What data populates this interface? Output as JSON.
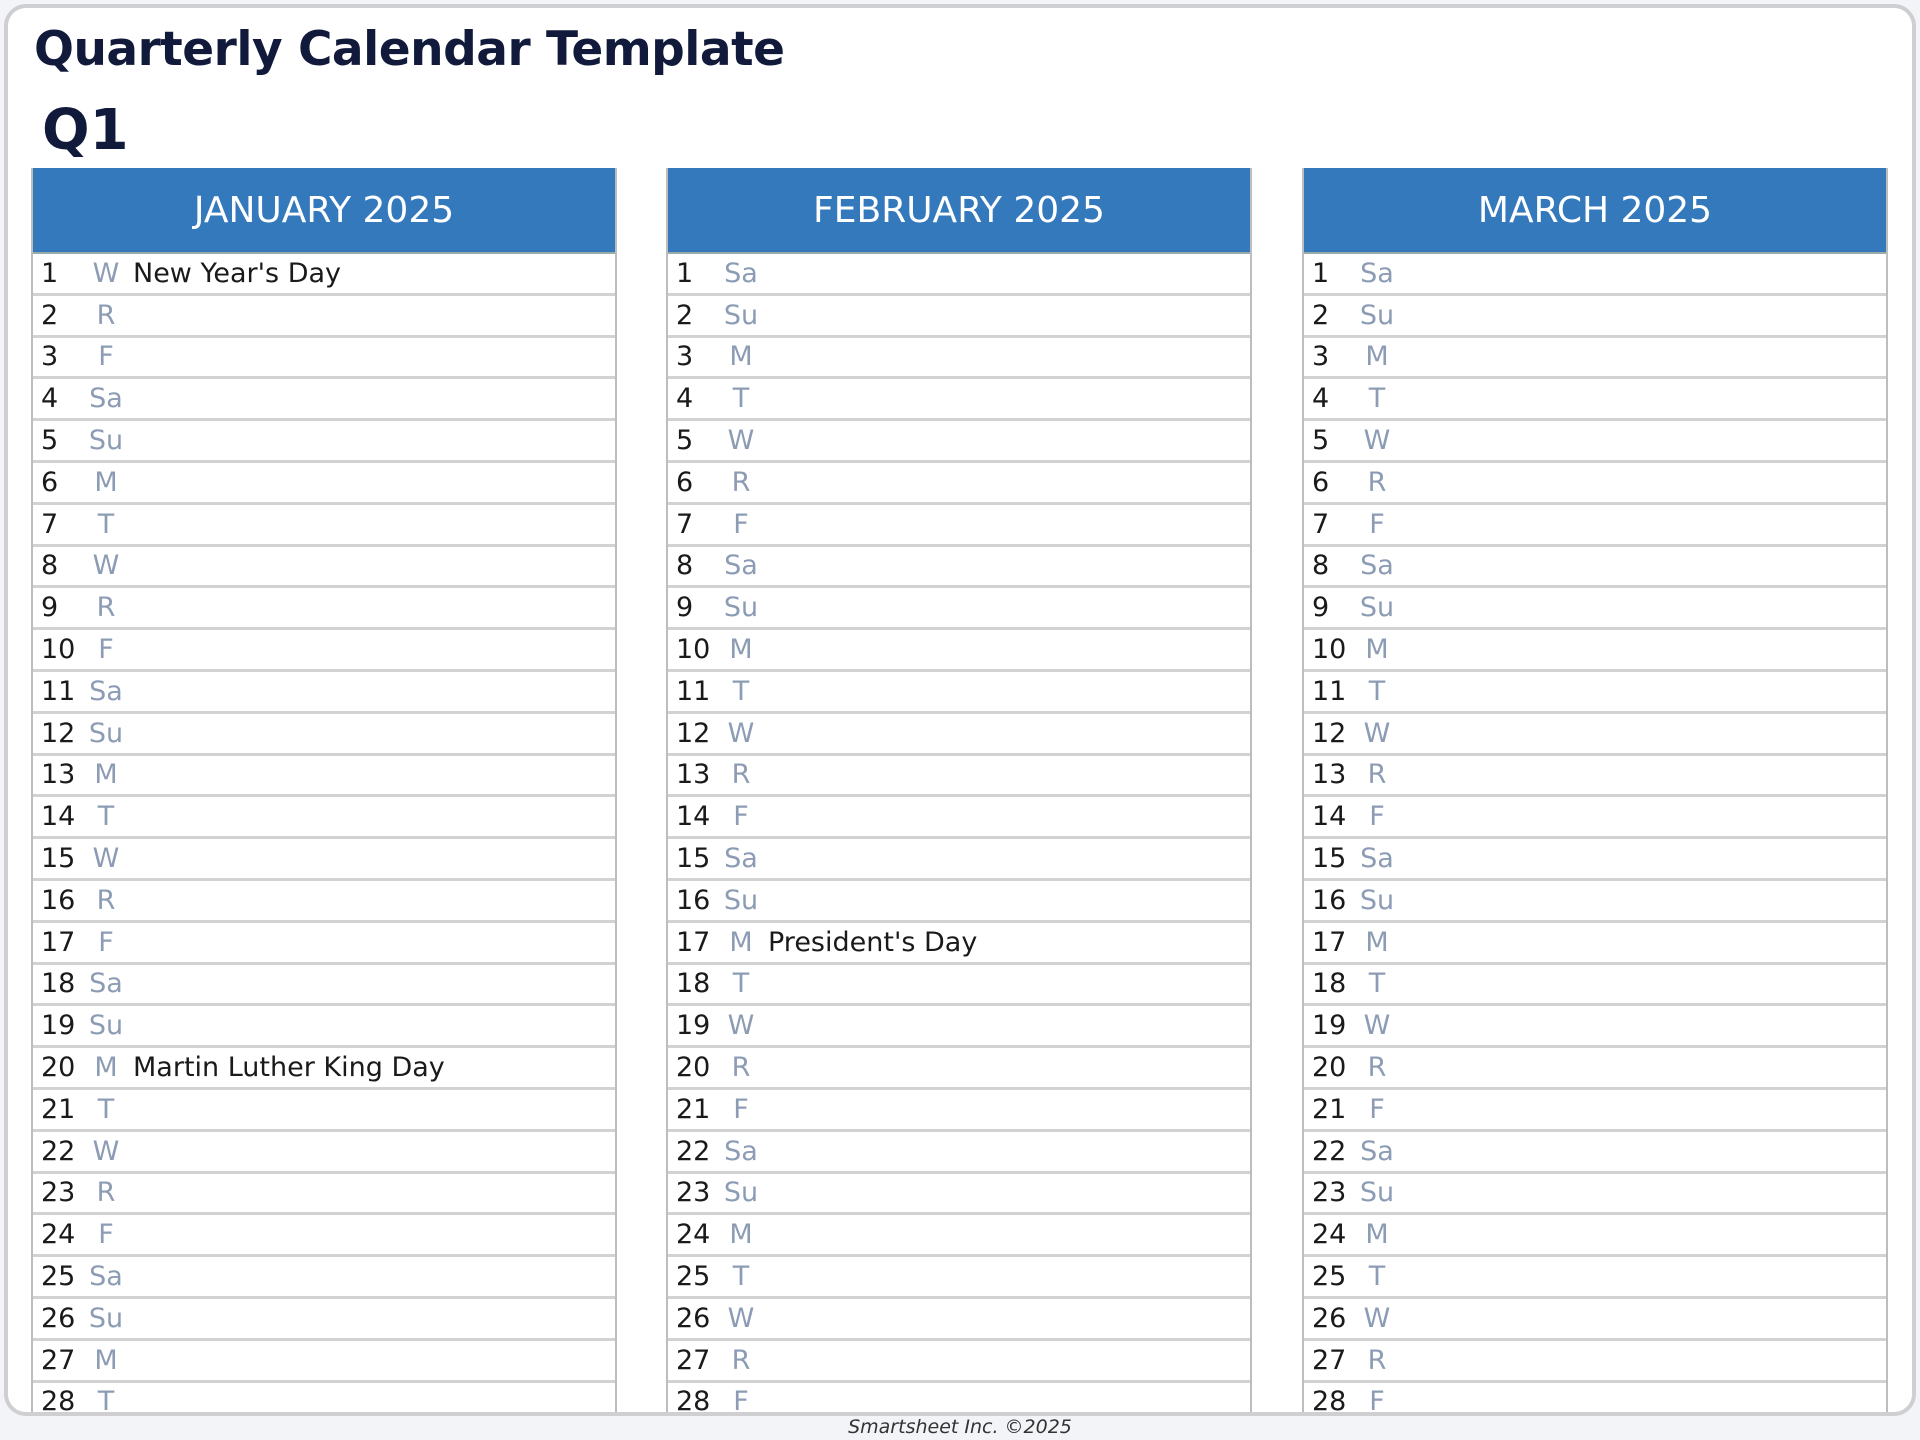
{
  "title": "Quarterly Calendar Template",
  "quarter": "Q1",
  "accent": "#3579bd",
  "footer": "Smartsheet Inc. ©2025",
  "months": [
    {
      "label": "JANUARY 2025",
      "days": [
        {
          "d": "1",
          "w": "W",
          "note": "New Year's Day"
        },
        {
          "d": "2",
          "w": "R"
        },
        {
          "d": "3",
          "w": "F"
        },
        {
          "d": "4",
          "w": "Sa"
        },
        {
          "d": "5",
          "w": "Su"
        },
        {
          "d": "6",
          "w": "M"
        },
        {
          "d": "7",
          "w": "T"
        },
        {
          "d": "8",
          "w": "W"
        },
        {
          "d": "9",
          "w": "R"
        },
        {
          "d": "10",
          "w": "F"
        },
        {
          "d": "11",
          "w": "Sa"
        },
        {
          "d": "12",
          "w": "Su"
        },
        {
          "d": "13",
          "w": "M"
        },
        {
          "d": "14",
          "w": "T"
        },
        {
          "d": "15",
          "w": "W"
        },
        {
          "d": "16",
          "w": "R"
        },
        {
          "d": "17",
          "w": "F"
        },
        {
          "d": "18",
          "w": "Sa"
        },
        {
          "d": "19",
          "w": "Su"
        },
        {
          "d": "20",
          "w": "M",
          "note": "Martin Luther King Day"
        },
        {
          "d": "21",
          "w": "T"
        },
        {
          "d": "22",
          "w": "W"
        },
        {
          "d": "23",
          "w": "R"
        },
        {
          "d": "24",
          "w": "F"
        },
        {
          "d": "25",
          "w": "Sa"
        },
        {
          "d": "26",
          "w": "Su"
        },
        {
          "d": "27",
          "w": "M"
        },
        {
          "d": "28",
          "w": "T"
        }
      ]
    },
    {
      "label": "FEBRUARY 2025",
      "days": [
        {
          "d": "1",
          "w": "Sa"
        },
        {
          "d": "2",
          "w": "Su"
        },
        {
          "d": "3",
          "w": "M"
        },
        {
          "d": "4",
          "w": "T"
        },
        {
          "d": "5",
          "w": "W"
        },
        {
          "d": "6",
          "w": "R"
        },
        {
          "d": "7",
          "w": "F"
        },
        {
          "d": "8",
          "w": "Sa"
        },
        {
          "d": "9",
          "w": "Su"
        },
        {
          "d": "10",
          "w": "M"
        },
        {
          "d": "11",
          "w": "T"
        },
        {
          "d": "12",
          "w": "W"
        },
        {
          "d": "13",
          "w": "R"
        },
        {
          "d": "14",
          "w": "F"
        },
        {
          "d": "15",
          "w": "Sa"
        },
        {
          "d": "16",
          "w": "Su"
        },
        {
          "d": "17",
          "w": "M",
          "note": "President's Day"
        },
        {
          "d": "18",
          "w": "T"
        },
        {
          "d": "19",
          "w": "W"
        },
        {
          "d": "20",
          "w": "R"
        },
        {
          "d": "21",
          "w": "F"
        },
        {
          "d": "22",
          "w": "Sa"
        },
        {
          "d": "23",
          "w": "Su"
        },
        {
          "d": "24",
          "w": "M"
        },
        {
          "d": "25",
          "w": "T"
        },
        {
          "d": "26",
          "w": "W"
        },
        {
          "d": "27",
          "w": "R"
        },
        {
          "d": "28",
          "w": "F"
        }
      ]
    },
    {
      "label": "MARCH 2025",
      "days": [
        {
          "d": "1",
          "w": "Sa"
        },
        {
          "d": "2",
          "w": "Su"
        },
        {
          "d": "3",
          "w": "M"
        },
        {
          "d": "4",
          "w": "T"
        },
        {
          "d": "5",
          "w": "W"
        },
        {
          "d": "6",
          "w": "R"
        },
        {
          "d": "7",
          "w": "F"
        },
        {
          "d": "8",
          "w": "Sa"
        },
        {
          "d": "9",
          "w": "Su"
        },
        {
          "d": "10",
          "w": "M"
        },
        {
          "d": "11",
          "w": "T"
        },
        {
          "d": "12",
          "w": "W"
        },
        {
          "d": "13",
          "w": "R"
        },
        {
          "d": "14",
          "w": "F"
        },
        {
          "d": "15",
          "w": "Sa"
        },
        {
          "d": "16",
          "w": "Su"
        },
        {
          "d": "17",
          "w": "M"
        },
        {
          "d": "18",
          "w": "T"
        },
        {
          "d": "19",
          "w": "W"
        },
        {
          "d": "20",
          "w": "R"
        },
        {
          "d": "21",
          "w": "F"
        },
        {
          "d": "22",
          "w": "Sa"
        },
        {
          "d": "23",
          "w": "Su"
        },
        {
          "d": "24",
          "w": "M"
        },
        {
          "d": "25",
          "w": "T"
        },
        {
          "d": "26",
          "w": "W"
        },
        {
          "d": "27",
          "w": "R"
        },
        {
          "d": "28",
          "w": "F"
        }
      ]
    }
  ]
}
